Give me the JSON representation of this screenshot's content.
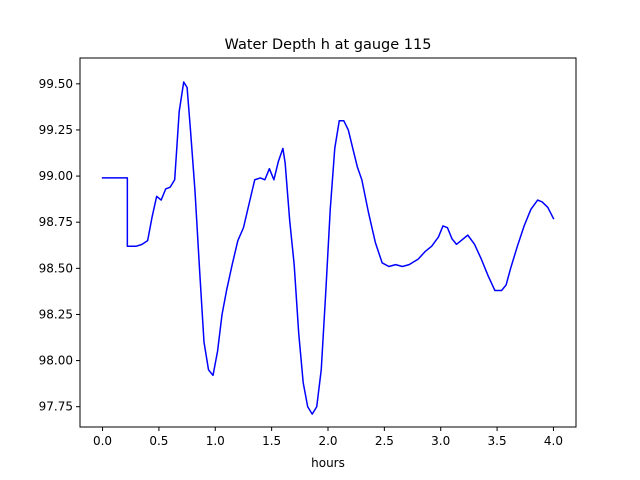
{
  "chart_data": {
    "type": "line",
    "title": "Water Depth h at gauge 115",
    "xlabel": "hours",
    "ylabel": "",
    "xlim": [
      -0.2,
      4.2
    ],
    "ylim": [
      97.64,
      99.64
    ],
    "grid": false,
    "legend": "none",
    "x_ticks": [
      "0.0",
      "0.5",
      "1.0",
      "1.5",
      "2.0",
      "2.5",
      "3.0",
      "3.5",
      "4.0"
    ],
    "y_ticks": [
      "97.75",
      "98.00",
      "98.25",
      "98.50",
      "98.75",
      "99.00",
      "99.25",
      "99.50"
    ],
    "series": [
      {
        "color": "#0000ff",
        "x": [
          0.0,
          0.1,
          0.2,
          0.22,
          0.22,
          0.26,
          0.3,
          0.35,
          0.4,
          0.44,
          0.48,
          0.52,
          0.56,
          0.6,
          0.64,
          0.68,
          0.72,
          0.75,
          0.78,
          0.82,
          0.86,
          0.9,
          0.94,
          0.98,
          1.02,
          1.06,
          1.1,
          1.15,
          1.2,
          1.25,
          1.3,
          1.35,
          1.4,
          1.44,
          1.48,
          1.52,
          1.56,
          1.6,
          1.62,
          1.66,
          1.7,
          1.74,
          1.78,
          1.82,
          1.86,
          1.9,
          1.94,
          1.98,
          2.02,
          2.06,
          2.1,
          2.14,
          2.18,
          2.22,
          2.26,
          2.3,
          2.36,
          2.42,
          2.48,
          2.54,
          2.6,
          2.66,
          2.72,
          2.8,
          2.86,
          2.92,
          2.98,
          3.02,
          3.06,
          3.1,
          3.14,
          3.18,
          3.24,
          3.3,
          3.36,
          3.42,
          3.48,
          3.54,
          3.58,
          3.62,
          3.68,
          3.74,
          3.8,
          3.86,
          3.9,
          3.95,
          4.0
        ],
        "y": [
          98.99,
          98.99,
          98.99,
          98.99,
          98.62,
          98.62,
          98.62,
          98.63,
          98.65,
          98.78,
          98.89,
          98.87,
          98.93,
          98.94,
          98.98,
          99.35,
          99.51,
          99.48,
          99.25,
          98.92,
          98.5,
          98.1,
          97.95,
          97.92,
          98.05,
          98.25,
          98.38,
          98.52,
          98.65,
          98.72,
          98.85,
          98.98,
          98.99,
          98.98,
          99.04,
          98.98,
          99.08,
          99.15,
          99.07,
          98.76,
          98.52,
          98.15,
          97.88,
          97.75,
          97.71,
          97.75,
          97.95,
          98.37,
          98.82,
          99.15,
          99.3,
          99.3,
          99.25,
          99.15,
          99.05,
          98.98,
          98.8,
          98.64,
          98.53,
          98.51,
          98.52,
          98.51,
          98.52,
          98.55,
          98.59,
          98.62,
          98.67,
          98.73,
          98.72,
          98.66,
          98.63,
          98.65,
          98.68,
          98.63,
          98.55,
          98.46,
          98.38,
          98.38,
          98.41,
          98.5,
          98.62,
          98.73,
          98.82,
          98.87,
          98.86,
          98.83,
          98.77
        ]
      }
    ]
  }
}
